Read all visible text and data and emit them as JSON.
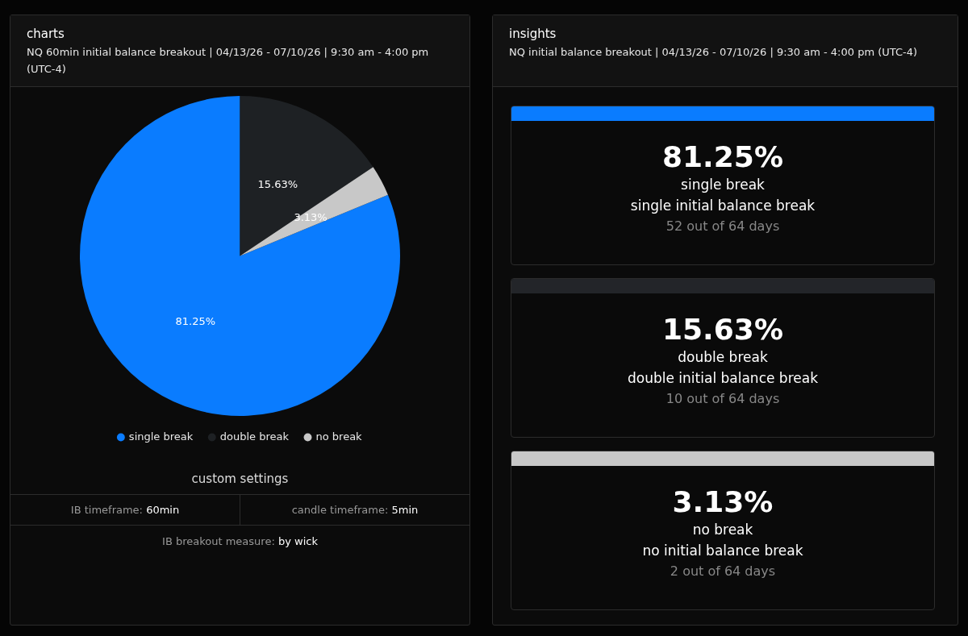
{
  "chart_data": [
    {
      "type": "pie",
      "title": "charts",
      "subtitle": "NQ 60min initial balance breakout  |  04/13/26 - 07/10/26  |  9:30 am - 4:00 pm (UTC-4)",
      "categories": [
        "single break",
        "double break",
        "no break"
      ],
      "values": [
        81.25,
        15.63,
        3.13
      ],
      "colors": [
        "#0a7cff",
        "#1e2124",
        "#c8c8c8"
      ],
      "value_labels": [
        "81.25%",
        "15.63%",
        "3.13%"
      ],
      "legend": "bottom",
      "annotations": [
        "custom settings",
        "IB timeframe: 60min",
        "candle timeframe: 5min",
        "IB breakout measure: by wick"
      ]
    },
    {
      "type": "other",
      "title": "insights",
      "subtitle": "NQ initial balance breakout  |  04/13/26 - 07/10/26  |  9:30 am - 4:00 pm (UTC-4)",
      "colors": [
        "#0a7cff",
        "#232529",
        "#c8c8c8"
      ],
      "annotations": [
        "81.25%",
        "single break",
        "single initial balance break",
        "52 out of 64 days",
        "15.63%",
        "double break",
        "double initial balance break",
        "10 out of 64 days",
        "3.13%",
        "no break",
        "no initial balance break",
        "2 out of 64 days"
      ]
    }
  ]
}
